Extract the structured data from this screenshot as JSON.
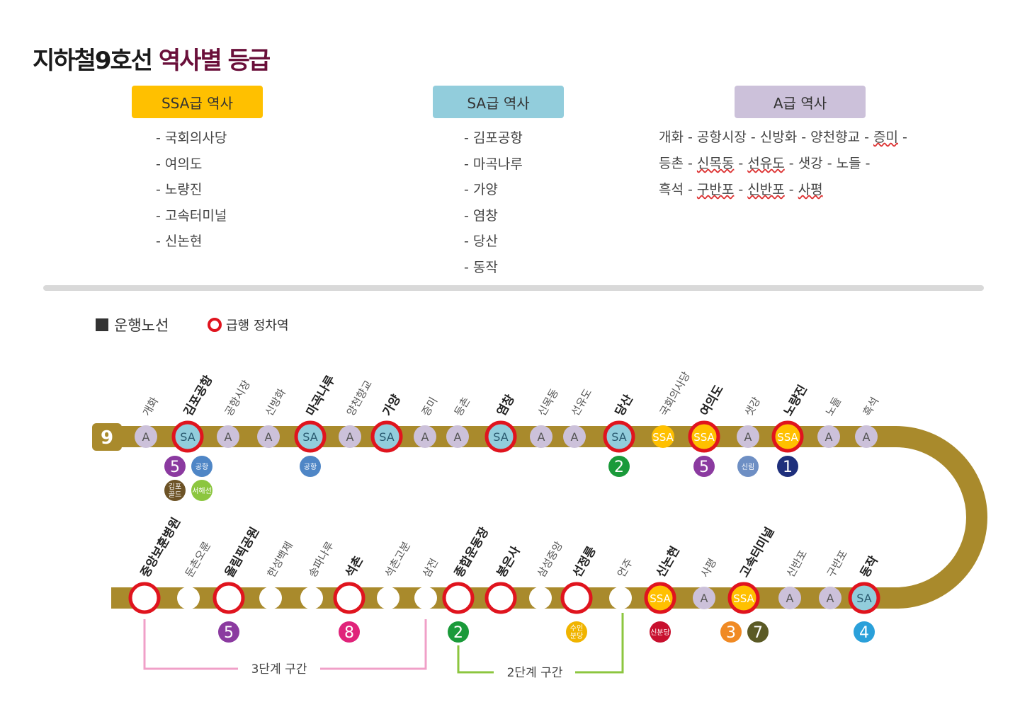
{
  "title": {
    "part1": "지하철9호선",
    "part2": "역사별 등급"
  },
  "grades": {
    "ssa": {
      "label": "SSA급 역사",
      "color": "#ffc000",
      "stations": [
        "- 국회의사당",
        "- 여의도",
        "- 노량진",
        "- 고속터미널",
        "- 신논현"
      ]
    },
    "sa": {
      "label": "SA급 역사",
      "color": "#92cddc",
      "stations": [
        "- 김포공항",
        "- 마곡나루",
        "- 가양",
        "- 염창",
        "- 당산",
        "- 동작"
      ]
    },
    "a": {
      "label": "A급 역사",
      "color": "#ccc1da",
      "lines": [
        [
          "개화",
          "공항시장",
          "신방화",
          "양천향교",
          "증미",
          ""
        ],
        [
          "등촌",
          "신목동",
          "선유도",
          "샛강",
          "노들",
          ""
        ],
        [
          "흑석",
          "구반포",
          "신반포",
          "사평"
        ]
      ]
    }
  },
  "legend": {
    "route": "운행노선",
    "express": "급행 정차역"
  },
  "line_badge": "9",
  "colors": {
    "track": "#a98a2c",
    "express_ring": "#e0141e",
    "ssa": "#ffc000",
    "sa": "#92cddc",
    "a": "#ccc1da"
  },
  "top_row": [
    {
      "name": "개화",
      "grade": "A",
      "express": false
    },
    {
      "name": "김포공항",
      "grade": "SA",
      "express": true
    },
    {
      "name": "공항시장",
      "grade": "A",
      "express": false
    },
    {
      "name": "신방화",
      "grade": "A",
      "express": false
    },
    {
      "name": "마곡나루",
      "grade": "SA",
      "express": true
    },
    {
      "name": "양천향교",
      "grade": "A",
      "express": false
    },
    {
      "name": "가양",
      "grade": "SA",
      "express": true
    },
    {
      "name": "증미",
      "grade": "A",
      "express": false
    },
    {
      "name": "등촌",
      "grade": "A",
      "express": false
    },
    {
      "name": "염창",
      "grade": "SA",
      "express": true
    },
    {
      "name": "신목동",
      "grade": "A",
      "express": false
    },
    {
      "name": "선유도",
      "grade": "A",
      "express": false
    },
    {
      "name": "당산",
      "grade": "SA",
      "express": true
    },
    {
      "name": "국회의사당",
      "grade": "SSA",
      "express": false
    },
    {
      "name": "여의도",
      "grade": "SSA",
      "express": true
    },
    {
      "name": "샛강",
      "grade": "A",
      "express": false
    },
    {
      "name": "노량진",
      "grade": "SSA",
      "express": true
    },
    {
      "name": "노들",
      "grade": "A",
      "express": false
    },
    {
      "name": "흑석",
      "grade": "A",
      "express": false
    }
  ],
  "bottom_row": [
    {
      "name": "중앙보훈병원",
      "grade": "",
      "express": true
    },
    {
      "name": "둔촌오륜",
      "grade": "",
      "express": false
    },
    {
      "name": "올림픽공원",
      "grade": "",
      "express": true
    },
    {
      "name": "한성백제",
      "grade": "",
      "express": false
    },
    {
      "name": "송파나루",
      "grade": "",
      "express": false
    },
    {
      "name": "석촌",
      "grade": "",
      "express": true
    },
    {
      "name": "석촌고분",
      "grade": "",
      "express": false
    },
    {
      "name": "삼전",
      "grade": "",
      "express": false
    },
    {
      "name": "종합운동장",
      "grade": "",
      "express": true
    },
    {
      "name": "봉은사",
      "grade": "",
      "express": true
    },
    {
      "name": "삼성중앙",
      "grade": "",
      "express": false
    },
    {
      "name": "선정릉",
      "grade": "",
      "express": true
    },
    {
      "name": "언주",
      "grade": "",
      "express": false
    },
    {
      "name": "신논현",
      "grade": "SSA",
      "express": true
    },
    {
      "name": "사평",
      "grade": "A",
      "express": false
    },
    {
      "name": "고속터미널",
      "grade": "SSA",
      "express": true
    },
    {
      "name": "신반포",
      "grade": "A",
      "express": false
    },
    {
      "name": "구반포",
      "grade": "A",
      "express": false
    },
    {
      "name": "동작",
      "grade": "SA",
      "express": true
    }
  ],
  "transfers_top": [
    {
      "station": "김포공항",
      "items": [
        {
          "label": "5",
          "color": "#8b3aa0"
        },
        {
          "label": "공항",
          "color": "#4f86c6"
        }
      ]
    },
    {
      "station": "김포공항",
      "row": 2,
      "items": [
        {
          "label": "김포\n골드",
          "color": "#6d5326"
        },
        {
          "label": "서해선",
          "color": "#8cc63f"
        }
      ]
    },
    {
      "station": "마곡나루",
      "items": [
        {
          "label": "공항",
          "color": "#4f86c6"
        }
      ]
    },
    {
      "station": "당산",
      "items": [
        {
          "label": "2",
          "color": "#1a9a3a"
        }
      ]
    },
    {
      "station": "여의도",
      "items": [
        {
          "label": "5",
          "color": "#8b3aa0"
        }
      ]
    },
    {
      "station": "샛강",
      "items": [
        {
          "label": "신림",
          "color": "#6e8fc4"
        }
      ]
    },
    {
      "station": "노량진",
      "items": [
        {
          "label": "1",
          "color": "#1e2f7c"
        }
      ]
    }
  ],
  "transfers_bottom": [
    {
      "station": "올림픽공원",
      "items": [
        {
          "label": "5",
          "color": "#8b3aa0"
        }
      ]
    },
    {
      "station": "석촌",
      "items": [
        {
          "label": "8",
          "color": "#e0237a"
        }
      ]
    },
    {
      "station": "종합운동장",
      "items": [
        {
          "label": "2",
          "color": "#1a9a3a"
        }
      ]
    },
    {
      "station": "선정릉",
      "items": [
        {
          "label": "수인\n분당",
          "color": "#f0b400"
        }
      ]
    },
    {
      "station": "신논현",
      "items": [
        {
          "label": "신분당",
          "color": "#c8102e"
        }
      ]
    },
    {
      "station": "고속터미널",
      "items": [
        {
          "label": "3",
          "color": "#f08a24"
        },
        {
          "label": "7",
          "color": "#5b5a25"
        }
      ]
    },
    {
      "station": "동작",
      "items": [
        {
          "label": "4",
          "color": "#2aa0da"
        }
      ]
    }
  ],
  "sections": [
    {
      "label": "3단계 구간",
      "color": "#f0a0c8"
    },
    {
      "label": "2단계 구간",
      "color": "#8cc63f"
    }
  ]
}
